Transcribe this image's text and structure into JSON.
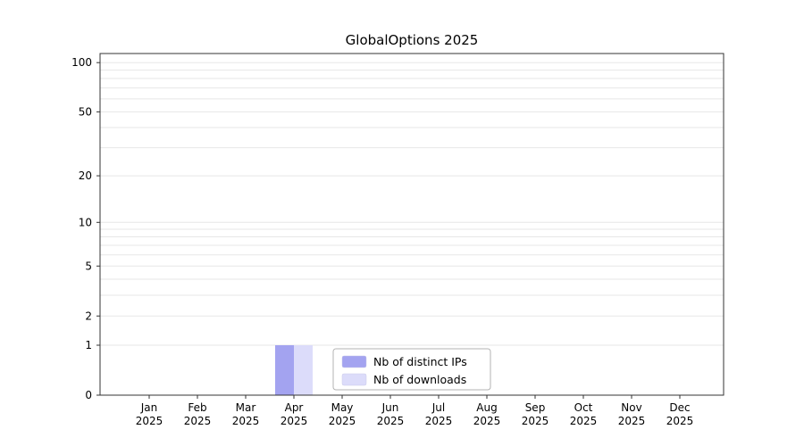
{
  "title": "GlobalOptions 2025",
  "chart_data": {
    "type": "bar",
    "title": "GlobalOptions 2025",
    "categories": [
      "Jan",
      "Feb",
      "Mar",
      "Apr",
      "May",
      "Jun",
      "Jul",
      "Aug",
      "Sep",
      "Oct",
      "Nov",
      "Dec"
    ],
    "category_year": "2025",
    "series": [
      {
        "name": "Nb of distinct IPs",
        "color": "#a3a3f0",
        "values": [
          0,
          0,
          0,
          1,
          0,
          0,
          0,
          0,
          0,
          0,
          0,
          0
        ]
      },
      {
        "name": "Nb of downloads",
        "color": "#dcdcfa",
        "values": [
          0,
          0,
          0,
          1,
          0,
          0,
          0,
          0,
          0,
          0,
          0,
          0
        ]
      }
    ],
    "yticks": [
      0,
      1,
      2,
      5,
      10,
      20,
      50,
      100
    ],
    "grid_values": [
      1,
      2,
      3,
      4,
      5,
      6,
      7,
      8,
      9,
      10,
      20,
      30,
      40,
      50,
      60,
      70,
      80,
      90,
      100
    ],
    "scale": "log1p",
    "ylim": [
      0,
      100
    ],
    "xlabel": "",
    "ylabel": "",
    "grid": "horizontal",
    "legend_position": "bottom-center",
    "colors": {
      "grid_line": "#e7e7e7",
      "frame": "#333333",
      "tick_text": "#000000",
      "legend_border": "#b3b3b3",
      "legend_bg": "#ffffff"
    }
  }
}
